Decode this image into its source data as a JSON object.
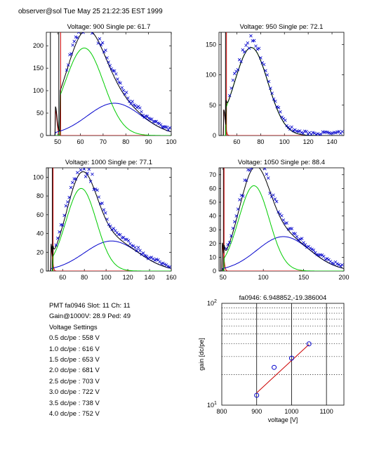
{
  "header": {
    "text": "observer@sol  Tue May 25 21:22:35 EST 1999"
  },
  "info": {
    "pmt_line": "PMT fa0946 Slot: 11 Ch: 11",
    "gain_line": "Gain@1000V: 28.9 Ped: 49",
    "settings_title": "Voltage Settings",
    "settings": [
      "0.5 dc/pe : 558 V",
      "1.0 dc/pe : 616 V",
      "1.5 dc/pe : 653 V",
      "2.0 dc/pe : 681 V",
      "2.5 dc/pe : 703 V",
      "3.0 dc/pe : 722 V",
      "3.5 dc/pe : 738 V",
      "4.0 dc/pe : 752 V"
    ]
  },
  "chart_data": [
    {
      "type": "scatter",
      "title": "Voltage: 900 Single pe: 61.7",
      "xlim": [
        45,
        100
      ],
      "ylim": [
        0,
        230
      ],
      "xticks": [
        50,
        60,
        70,
        80,
        90,
        100
      ],
      "yticks": [
        0,
        50,
        100,
        150,
        200
      ],
      "pedestal": 49,
      "spe_peak": 61.7,
      "spe_amp": 195,
      "spe_sigma": 8.5,
      "tail_peak": 75,
      "tail_amp": 72,
      "tail_sigma": 12,
      "data_color": "#0000cc",
      "fit_color": "#000000",
      "spe_color": "#00cc00",
      "tail_color": "#0000cc",
      "ped_color": "#cc0000"
    },
    {
      "type": "scatter",
      "title": "Voltage: 950 Single pe: 72.1",
      "xlim": [
        45,
        150
      ],
      "ylim": [
        0,
        170
      ],
      "xticks": [
        60,
        80,
        100,
        120,
        140
      ],
      "yticks": [
        0,
        50,
        100,
        150
      ],
      "pedestal": 49,
      "spe_peak": 72.1,
      "spe_amp": 145,
      "spe_sigma": 14,
      "tail_peak": 95,
      "tail_amp": 0,
      "tail_sigma": 25,
      "data_color": "#0000cc",
      "fit_color": "#000000",
      "spe_color": "#00cc00",
      "tail_color": "#0000cc",
      "ped_color": "#cc0000"
    },
    {
      "type": "scatter",
      "title": "Voltage: 1000 Single pe: 77.1",
      "xlim": [
        45,
        160
      ],
      "ylim": [
        0,
        110
      ],
      "xticks": [
        60,
        80,
        100,
        120,
        140,
        160
      ],
      "yticks": [
        0,
        20,
        40,
        60,
        80,
        100
      ],
      "pedestal": 49,
      "spe_peak": 77.1,
      "spe_amp": 88,
      "spe_sigma": 14,
      "tail_peak": 105,
      "tail_amp": 32,
      "tail_sigma": 25,
      "data_color": "#0000cc",
      "fit_color": "#000000",
      "spe_color": "#00cc00",
      "tail_color": "#0000cc",
      "ped_color": "#cc0000"
    },
    {
      "type": "scatter",
      "title": "Voltage: 1050 Single pe: 88.4",
      "xlim": [
        45,
        200
      ],
      "ylim": [
        0,
        75
      ],
      "xticks": [
        50,
        100,
        150,
        200
      ],
      "yticks": [
        0,
        10,
        20,
        30,
        40,
        50,
        60,
        70
      ],
      "pedestal": 49,
      "spe_peak": 88.4,
      "spe_amp": 62,
      "spe_sigma": 19,
      "tail_peak": 125,
      "tail_amp": 25,
      "tail_sigma": 33,
      "data_color": "#0000cc",
      "fit_color": "#000000",
      "spe_color": "#00cc00",
      "tail_color": "#0000cc",
      "ped_color": "#cc0000"
    },
    {
      "type": "scatter",
      "title": "fa0946: 6.948852,-19.386004",
      "xlabel": "voltage [V]",
      "ylabel": "gain [dc/pe]",
      "xlim": [
        800,
        1150
      ],
      "xticks": [
        800,
        900,
        1000,
        1100
      ],
      "ylim": [
        10,
        100
      ],
      "yscale": "log",
      "ytick_labels": [
        {
          "base": "10",
          "exp": "1"
        },
        {
          "base": "10",
          "exp": "2"
        }
      ],
      "points": [
        {
          "x": 900,
          "y": 12.5
        },
        {
          "x": 950,
          "y": 23.5
        },
        {
          "x": 1000,
          "y": 28.9
        },
        {
          "x": 1050,
          "y": 40.0
        }
      ],
      "fit": [
        {
          "x": 900,
          "y": 13.2
        },
        {
          "x": 1050,
          "y": 39.5
        }
      ],
      "point_color": "#0000cc",
      "fit_color": "#cc0000",
      "grid": "dotted-y-minor, solid-x-major"
    }
  ]
}
